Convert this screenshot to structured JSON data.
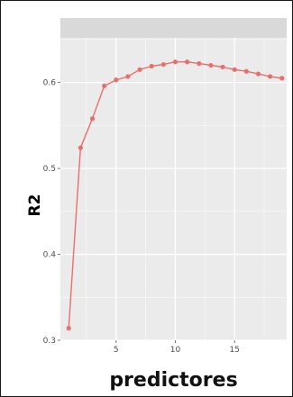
{
  "chart_data": {
    "type": "line",
    "title": "",
    "xlabel": "predictores",
    "ylabel": "R2",
    "x": [
      1,
      2,
      3,
      4,
      5,
      6,
      7,
      8,
      9,
      10,
      11,
      12,
      13,
      14,
      15,
      16,
      17,
      18,
      19
    ],
    "series": [
      {
        "values": [
          0.314,
          0.524,
          0.558,
          0.596,
          0.603,
          0.607,
          0.615,
          0.619,
          0.621,
          0.624,
          0.624,
          0.622,
          0.62,
          0.618,
          0.615,
          0.613,
          0.61,
          0.607,
          0.605
        ]
      }
    ],
    "xlim": [
      0.3,
      19.4
    ],
    "ylim": [
      0.3,
      0.652
    ],
    "xticks": [
      5,
      10,
      15
    ],
    "xtick_labels": [
      "5",
      "10",
      "15"
    ],
    "yticks": [
      0.3,
      0.4,
      0.5,
      0.6
    ],
    "ytick_labels": [
      "0.3",
      "0.4",
      "0.5",
      "0.6"
    ],
    "grid": true,
    "colors": {
      "line": "#e8706a",
      "panel_background": "#ebebeb",
      "grid_major": "#ffffff",
      "strip": "#d9d9d9"
    }
  }
}
